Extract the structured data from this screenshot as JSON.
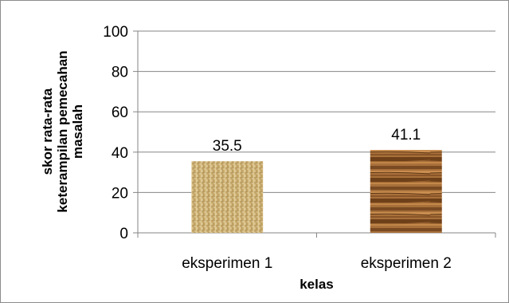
{
  "chart_data": {
    "type": "bar",
    "categories": [
      "eksperimen 1",
      "eksperimen 2"
    ],
    "values": [
      35.5,
      41.1
    ],
    "data_labels": [
      "35.5",
      "41.1"
    ],
    "xlabel": "kelas",
    "ylabel_lines": [
      "skor rata-rata",
      "keterampilan pemecahan",
      "masalah"
    ],
    "ylim": [
      0,
      100
    ],
    "yticks": [
      "0",
      "20",
      "40",
      "60",
      "80",
      "100"
    ],
    "grid": true,
    "legend": "none",
    "bar_fills": [
      "burlap-texture",
      "wood-grain-texture"
    ]
  }
}
